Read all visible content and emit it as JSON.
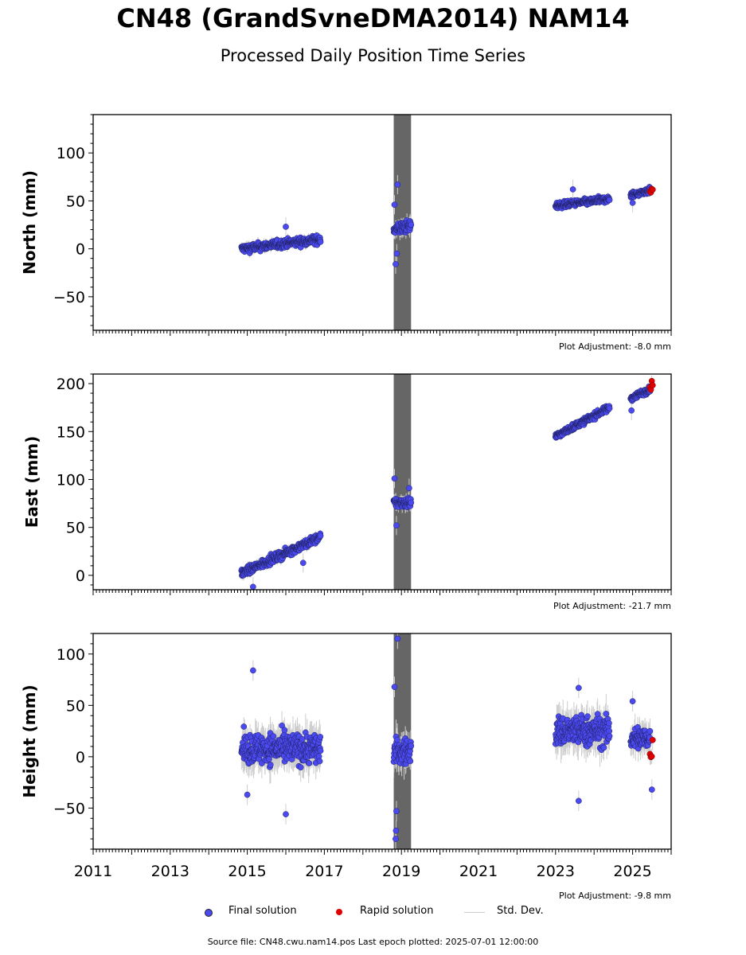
{
  "title": "CN48 (GrandSvneDMA2014) NAM14",
  "subtitle": "Processed Daily Position Time Series",
  "footer": "Source file: CN48.cwu.nam14.pos  Last epoch plotted: 2025-07-01 12:00:00",
  "legend": {
    "final": "Final solution",
    "rapid": "Rapid solution",
    "stddev": "Std. Dev."
  },
  "colors": {
    "final": "#4a4af0",
    "rapid": "#e00000",
    "stddev": "#cccccc",
    "gap_band": "#666666"
  },
  "chart_data": [
    {
      "type": "scatter",
      "ylabel": "North (mm)",
      "adjustment": "Plot Adjustment: -8.0 mm",
      "ylim": [
        -85,
        140
      ],
      "yticks": [
        -50,
        0,
        50,
        100
      ],
      "xlim": [
        2011.0,
        2026.0
      ],
      "xticks": [
        2011,
        2013,
        2015,
        2017,
        2019,
        2021,
        2023,
        2025
      ],
      "shaded_interval": [
        2018.8,
        2019.25
      ],
      "segments": [
        {
          "series": "final",
          "x_start": 2014.85,
          "x_end": 2016.9,
          "y_start": 0,
          "y_end": 10,
          "scatter": 4
        },
        {
          "series": "final",
          "x_start": 2018.8,
          "x_end": 2019.25,
          "y_start": 20,
          "y_end": 24,
          "scatter": 6
        },
        {
          "series": "final",
          "x_start": 2023.0,
          "x_end": 2024.4,
          "y_start": 45,
          "y_end": 52,
          "scatter": 3
        },
        {
          "series": "final",
          "x_start": 2024.95,
          "x_end": 2025.45,
          "y_start": 56,
          "y_end": 61,
          "scatter": 3
        },
        {
          "series": "rapid",
          "x_start": 2025.45,
          "x_end": 2025.52,
          "y_start": 59,
          "y_end": 63,
          "scatter": 3
        }
      ],
      "outliers": [
        [
          2018.9,
          67
        ],
        [
          2018.82,
          46
        ],
        [
          2018.85,
          -16
        ],
        [
          2018.88,
          -5
        ],
        [
          2016.0,
          23
        ],
        [
          2023.45,
          62
        ],
        [
          2025.0,
          48
        ]
      ]
    },
    {
      "type": "scatter",
      "ylabel": "East (mm)",
      "adjustment": "Plot Adjustment: -21.7 mm",
      "ylim": [
        -15,
        210
      ],
      "yticks": [
        0,
        50,
        100,
        150,
        200
      ],
      "xlim": [
        2011.0,
        2026.0
      ],
      "xticks": [
        2011,
        2013,
        2015,
        2017,
        2019,
        2021,
        2023,
        2025
      ],
      "shaded_interval": [
        2018.8,
        2019.25
      ],
      "segments": [
        {
          "series": "final",
          "x_start": 2014.85,
          "x_end": 2016.9,
          "y_start": 2,
          "y_end": 40,
          "scatter": 4
        },
        {
          "series": "final",
          "x_start": 2018.8,
          "x_end": 2019.25,
          "y_start": 76,
          "y_end": 76,
          "scatter": 5
        },
        {
          "series": "final",
          "x_start": 2023.0,
          "x_end": 2024.4,
          "y_start": 145,
          "y_end": 175,
          "scatter": 3
        },
        {
          "series": "final",
          "x_start": 2024.95,
          "x_end": 2025.45,
          "y_start": 185,
          "y_end": 194,
          "scatter": 3
        },
        {
          "series": "rapid",
          "x_start": 2025.45,
          "x_end": 2025.52,
          "y_start": 192,
          "y_end": 200,
          "scatter": 5
        }
      ],
      "outliers": [
        [
          2018.82,
          101
        ],
        [
          2018.87,
          52
        ],
        [
          2019.2,
          91
        ],
        [
          2015.15,
          -12
        ],
        [
          2016.45,
          13
        ],
        [
          2024.97,
          172
        ]
      ]
    },
    {
      "type": "scatter",
      "ylabel": "Height (mm)",
      "adjustment": "Plot Adjustment: -9.8 mm",
      "ylim": [
        -90,
        120
      ],
      "yticks": [
        -50,
        0,
        50,
        100
      ],
      "xlim": [
        2011.0,
        2026.0
      ],
      "xticks": [
        2011,
        2013,
        2015,
        2017,
        2019,
        2021,
        2023,
        2025
      ],
      "xticklabels": [
        "2011",
        "2013",
        "2015",
        "2017",
        "2019",
        "2021",
        "2023",
        "2025"
      ],
      "shaded_interval": [
        2018.8,
        2019.25
      ],
      "segments": [
        {
          "series": "final",
          "x_start": 2014.85,
          "x_end": 2016.9,
          "y_start": 8,
          "y_end": 8,
          "scatter": 14
        },
        {
          "series": "final",
          "x_start": 2018.8,
          "x_end": 2019.25,
          "y_start": 5,
          "y_end": 5,
          "scatter": 12
        },
        {
          "series": "final",
          "x_start": 2023.0,
          "x_end": 2024.4,
          "y_start": 25,
          "y_end": 25,
          "scatter": 14
        },
        {
          "series": "final",
          "x_start": 2024.95,
          "x_end": 2025.45,
          "y_start": 18,
          "y_end": 18,
          "scatter": 11
        },
        {
          "series": "rapid",
          "x_start": 2025.45,
          "x_end": 2025.52,
          "y_start": 8,
          "y_end": 8,
          "scatter": 10
        }
      ],
      "outliers": [
        [
          2015.15,
          84
        ],
        [
          2018.9,
          115
        ],
        [
          2018.82,
          68
        ],
        [
          2018.85,
          -80
        ],
        [
          2018.86,
          -72
        ],
        [
          2018.87,
          -53
        ],
        [
          2016.0,
          -56
        ],
        [
          2023.6,
          -43
        ],
        [
          2023.6,
          67
        ],
        [
          2025.5,
          -32
        ],
        [
          2015.0,
          -37
        ],
        [
          2025.0,
          54
        ]
      ]
    }
  ]
}
